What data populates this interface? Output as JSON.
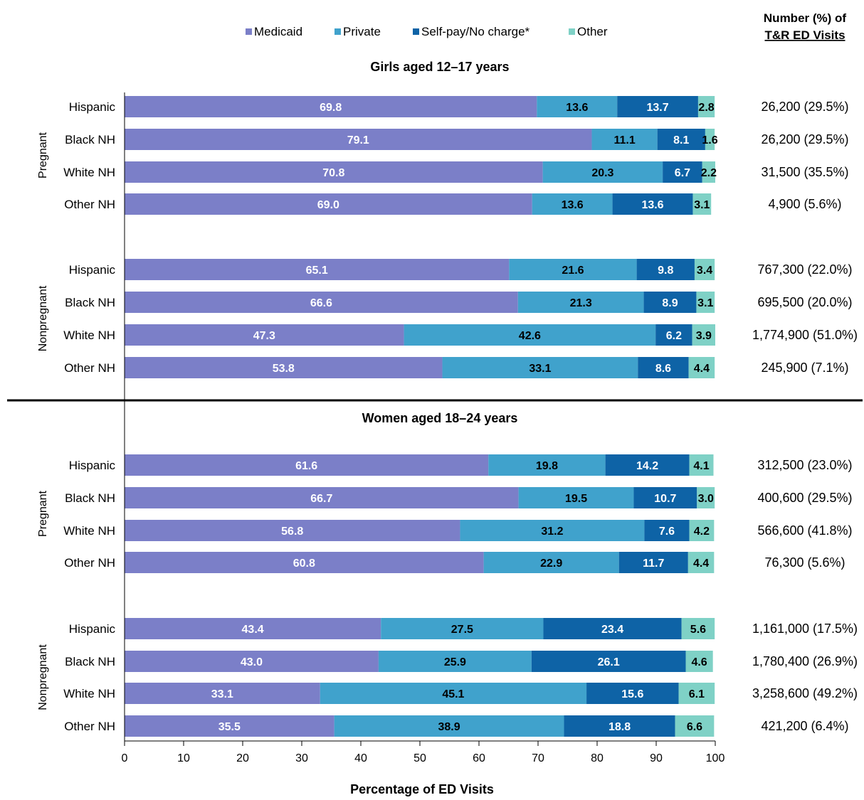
{
  "chart_data": {
    "type": "bar",
    "orientation": "horizontal",
    "stacked": true,
    "legend_position": "top",
    "legend": [
      {
        "key": "medicaid",
        "label": "Medicaid",
        "color": "#7b7fc8"
      },
      {
        "key": "private",
        "label": "Private",
        "color": "#40a2cc"
      },
      {
        "key": "selfpay",
        "label": "Self-pay/No charge*",
        "color": "#0e63a6"
      },
      {
        "key": "other",
        "label": "Other",
        "color": "#7fd1c6"
      }
    ],
    "right_column_header": {
      "line1": "Number (%) of",
      "line2": "T&R ED Visits"
    },
    "xlabel": "Percentage of ED Visits",
    "xlim": [
      0,
      100
    ],
    "xticks": [
      "0",
      "10",
      "20",
      "30",
      "40",
      "50",
      "60",
      "70",
      "80",
      "90",
      "100"
    ],
    "sections": [
      {
        "title": "Girls aged 12–17 years",
        "groups": [
          {
            "label": "Pregnant",
            "rows": [
              {
                "category": "Hispanic",
                "values": [
                  69.8,
                  13.6,
                  13.7,
                  2.8
                ],
                "count": "26,200 (29.5%)"
              },
              {
                "category": "Black NH",
                "values": [
                  79.1,
                  11.1,
                  8.1,
                  1.6
                ],
                "count": "26,200 (29.5%)"
              },
              {
                "category": "White NH",
                "values": [
                  70.8,
                  20.3,
                  6.7,
                  2.2
                ],
                "count": "31,500 (35.5%)"
              },
              {
                "category": "Other NH",
                "values": [
                  69.0,
                  13.6,
                  13.6,
                  3.1
                ],
                "count": "4,900 (5.6%)"
              }
            ]
          },
          {
            "label": "Nonpregnant",
            "rows": [
              {
                "category": "Hispanic",
                "values": [
                  65.1,
                  21.6,
                  9.8,
                  3.4
                ],
                "count": "767,300 (22.0%)"
              },
              {
                "category": "Black NH",
                "values": [
                  66.6,
                  21.3,
                  8.9,
                  3.1
                ],
                "count": "695,500 (20.0%)"
              },
              {
                "category": "White NH",
                "values": [
                  47.3,
                  42.6,
                  6.2,
                  3.9
                ],
                "count": "1,774,900 (51.0%)"
              },
              {
                "category": "Other NH",
                "values": [
                  53.8,
                  33.1,
                  8.6,
                  4.4
                ],
                "count": "245,900 (7.1%)"
              }
            ]
          }
        ]
      },
      {
        "title": "Women aged 18–24 years",
        "groups": [
          {
            "label": "Pregnant",
            "rows": [
              {
                "category": "Hispanic",
                "values": [
                  61.6,
                  19.8,
                  14.2,
                  4.1
                ],
                "count": "312,500 (23.0%)"
              },
              {
                "category": "Black NH",
                "values": [
                  66.7,
                  19.5,
                  10.7,
                  3.0
                ],
                "count": "400,600 (29.5%)"
              },
              {
                "category": "White NH",
                "values": [
                  56.8,
                  31.2,
                  7.6,
                  4.2
                ],
                "count": "566,600 (41.8%)"
              },
              {
                "category": "Other NH",
                "values": [
                  60.8,
                  22.9,
                  11.7,
                  4.4
                ],
                "count": "76,300 (5.6%)"
              }
            ]
          },
          {
            "label": "Nonpregnant",
            "rows": [
              {
                "category": "Hispanic",
                "values": [
                  43.4,
                  27.5,
                  23.4,
                  5.6
                ],
                "count": "1,161,000 (17.5%)"
              },
              {
                "category": "Black NH",
                "values": [
                  43.0,
                  25.9,
                  26.1,
                  4.6
                ],
                "count": "1,780,400 (26.9%)"
              },
              {
                "category": "White NH",
                "values": [
                  33.1,
                  45.1,
                  15.6,
                  6.1
                ],
                "count": "3,258,600 (49.2%)"
              },
              {
                "category": "Other NH",
                "values": [
                  35.5,
                  38.9,
                  18.8,
                  6.6
                ],
                "count": "421,200 (6.4%)"
              }
            ]
          }
        ]
      }
    ]
  }
}
